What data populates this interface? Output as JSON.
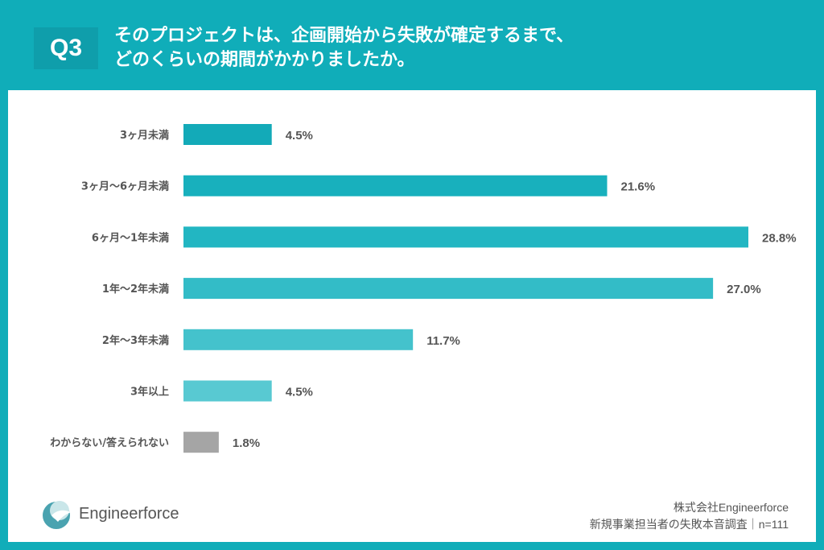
{
  "header": {
    "badge": "Q3",
    "title_line1": "そのプロジェクトは、企画開始から失敗が確定するまで、",
    "title_line2": "どのくらいの期間がかかりましたか。"
  },
  "footer": {
    "logo_text": "Engineerforce",
    "company": "株式会社Engineerforce",
    "survey": "新規事業担当者の失敗本音調査｜n=111"
  },
  "chart_data": {
    "type": "bar",
    "orientation": "horizontal",
    "categories": [
      "3ヶ月未満",
      "3ヶ月〜6ヶ月未満",
      "6ヶ月〜1年未満",
      "1年〜2年未満",
      "2年〜3年未満",
      "3年以上",
      "わからない/答えられない"
    ],
    "values": [
      4.5,
      21.6,
      28.8,
      27.0,
      11.7,
      4.5,
      1.8
    ],
    "value_labels": [
      "4.5%",
      "21.6%",
      "28.8%",
      "27.0%",
      "11.7%",
      "4.5%",
      "1.8%"
    ],
    "colors": [
      "#13aab8",
      "#18b0bd",
      "#22b6c2",
      "#33bcc7",
      "#44c2cc",
      "#58c9d2",
      "#a5a5a5"
    ],
    "xlim": [
      0,
      28.8
    ],
    "grid": false
  }
}
